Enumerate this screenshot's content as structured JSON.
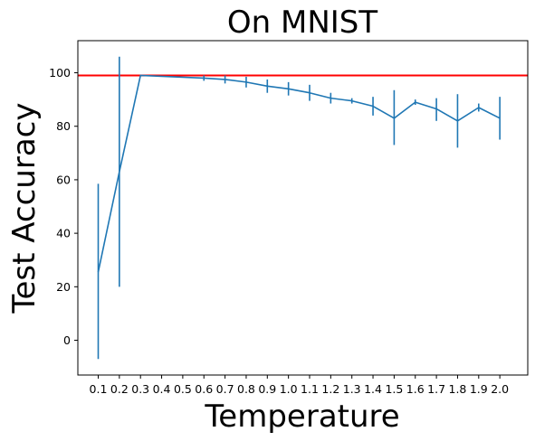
{
  "chart_data": {
    "type": "line",
    "title": "On MNIST",
    "xlabel": "Temperature",
    "ylabel": "Test Accuracy",
    "ylim": [
      -13,
      112
    ],
    "yticks": [
      0,
      20,
      40,
      60,
      80,
      100
    ],
    "grid": false,
    "series": [
      {
        "color": "#1f77b4",
        "x": [
          "0.1",
          "0.2",
          "0.3",
          "0.4",
          "0.5",
          "0.6",
          "0.7",
          "0.8",
          "0.9",
          "1.0",
          "1.1",
          "1.2",
          "1.3",
          "1.4",
          "1.5",
          "1.6",
          "1.7",
          "1.8",
          "1.9",
          "2.0"
        ],
        "points": [
          {
            "x": "0.1",
            "y": 25.5,
            "yerr_low": -7,
            "yerr_high": 58.5
          },
          {
            "x": "0.2",
            "y": 63,
            "yerr_low": 20,
            "yerr_high": 106
          },
          {
            "x": "0.3",
            "y": 99,
            "yerr_low": 99,
            "yerr_high": 99
          },
          {
            "x": "0.6",
            "y": 98,
            "yerr_low": 97,
            "yerr_high": 99
          },
          {
            "x": "0.7",
            "y": 97.5,
            "yerr_low": 96,
            "yerr_high": 99
          },
          {
            "x": "0.8",
            "y": 96.5,
            "yerr_low": 94.5,
            "yerr_high": 98.5
          },
          {
            "x": "0.9",
            "y": 95,
            "yerr_low": 92.5,
            "yerr_high": 97.5
          },
          {
            "x": "1.0",
            "y": 94,
            "yerr_low": 91.5,
            "yerr_high": 96.5
          },
          {
            "x": "1.1",
            "y": 92.5,
            "yerr_low": 89.5,
            "yerr_high": 95.5
          },
          {
            "x": "1.2",
            "y": 90.5,
            "yerr_low": 88.5,
            "yerr_high": 92.5
          },
          {
            "x": "1.3",
            "y": 89.5,
            "yerr_low": 88.5,
            "yerr_high": 90.5
          },
          {
            "x": "1.4",
            "y": 87.5,
            "yerr_low": 84,
            "yerr_high": 91
          },
          {
            "x": "1.5",
            "y": 83,
            "yerr_low": 73,
            "yerr_high": 93.5
          },
          {
            "x": "1.6",
            "y": 89,
            "yerr_low": 88,
            "yerr_high": 90
          },
          {
            "x": "1.7",
            "y": 86.5,
            "yerr_low": 82,
            "yerr_high": 90.5
          },
          {
            "x": "1.8",
            "y": 82,
            "yerr_low": 72,
            "yerr_high": 92
          },
          {
            "x": "1.9",
            "y": 87,
            "yerr_low": 85.5,
            "yerr_high": 88.5
          },
          {
            "x": "2.0",
            "y": 83,
            "yerr_low": 75,
            "yerr_high": 91
          }
        ]
      }
    ],
    "reference_line": {
      "y": 99,
      "color": "#ff0000"
    }
  }
}
